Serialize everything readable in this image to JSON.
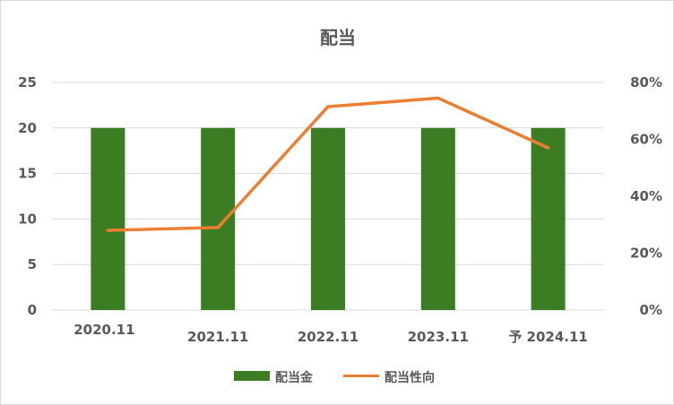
{
  "chart_data": {
    "type": "bar",
    "title": "配当",
    "categories": [
      "2020.11",
      "2021.11",
      "2022.11",
      "2023.11",
      "予 2024.11"
    ],
    "series": [
      {
        "name": "配当金",
        "type": "bar",
        "axis": "left",
        "values": [
          20,
          20,
          20,
          20,
          20
        ],
        "color": "#3a7d22"
      },
      {
        "name": "配当性向",
        "type": "line",
        "axis": "right",
        "values": [
          0.28,
          0.29,
          0.715,
          0.745,
          0.57
        ],
        "color": "#ed7d31"
      }
    ],
    "y_left": {
      "min": 0,
      "max": 25,
      "ticks": [
        0,
        5,
        10,
        15,
        20,
        25
      ],
      "tick_labels": [
        "0",
        "5",
        "10",
        "15",
        "20",
        "25"
      ]
    },
    "y_right": {
      "min": 0,
      "max": 0.8,
      "ticks": [
        0,
        0.2,
        0.4,
        0.6,
        0.8
      ],
      "tick_labels": [
        "0%",
        "20%",
        "40%",
        "60%",
        "80%"
      ]
    },
    "grid": true,
    "legend_position": "bottom"
  }
}
